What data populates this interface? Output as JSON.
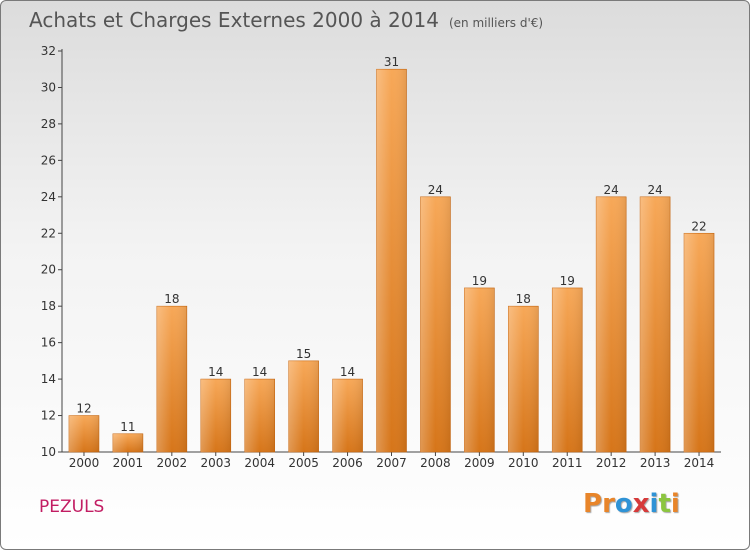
{
  "header": {
    "title": "Achats et Charges Externes 2000 à 2014",
    "unit": "(en milliers d'€)"
  },
  "footer": {
    "commune": "PEZULS",
    "logo_text": "Proxiti",
    "logo_colors": [
      "#e8852a",
      "#e8852a",
      "#2f93d6",
      "#d63a3a",
      "#2f93d6",
      "#8cc63f",
      "#e8852a"
    ]
  },
  "chart_data": {
    "type": "bar",
    "categories": [
      "2000",
      "2001",
      "2002",
      "2003",
      "2004",
      "2005",
      "2006",
      "2007",
      "2008",
      "2009",
      "2010",
      "2011",
      "2012",
      "2013",
      "2014"
    ],
    "values": [
      12,
      11,
      18,
      14,
      14,
      15,
      14,
      31,
      24,
      19,
      18,
      19,
      24,
      24,
      22
    ],
    "title": "Achats et Charges Externes 2000 à 2014",
    "ylim": [
      10,
      32
    ],
    "yticks": [
      10,
      12,
      14,
      16,
      18,
      20,
      22,
      24,
      26,
      28,
      30,
      32
    ],
    "grid": false,
    "bar_color_top": "#f7a858",
    "bar_color_bottom": "#d67519"
  }
}
